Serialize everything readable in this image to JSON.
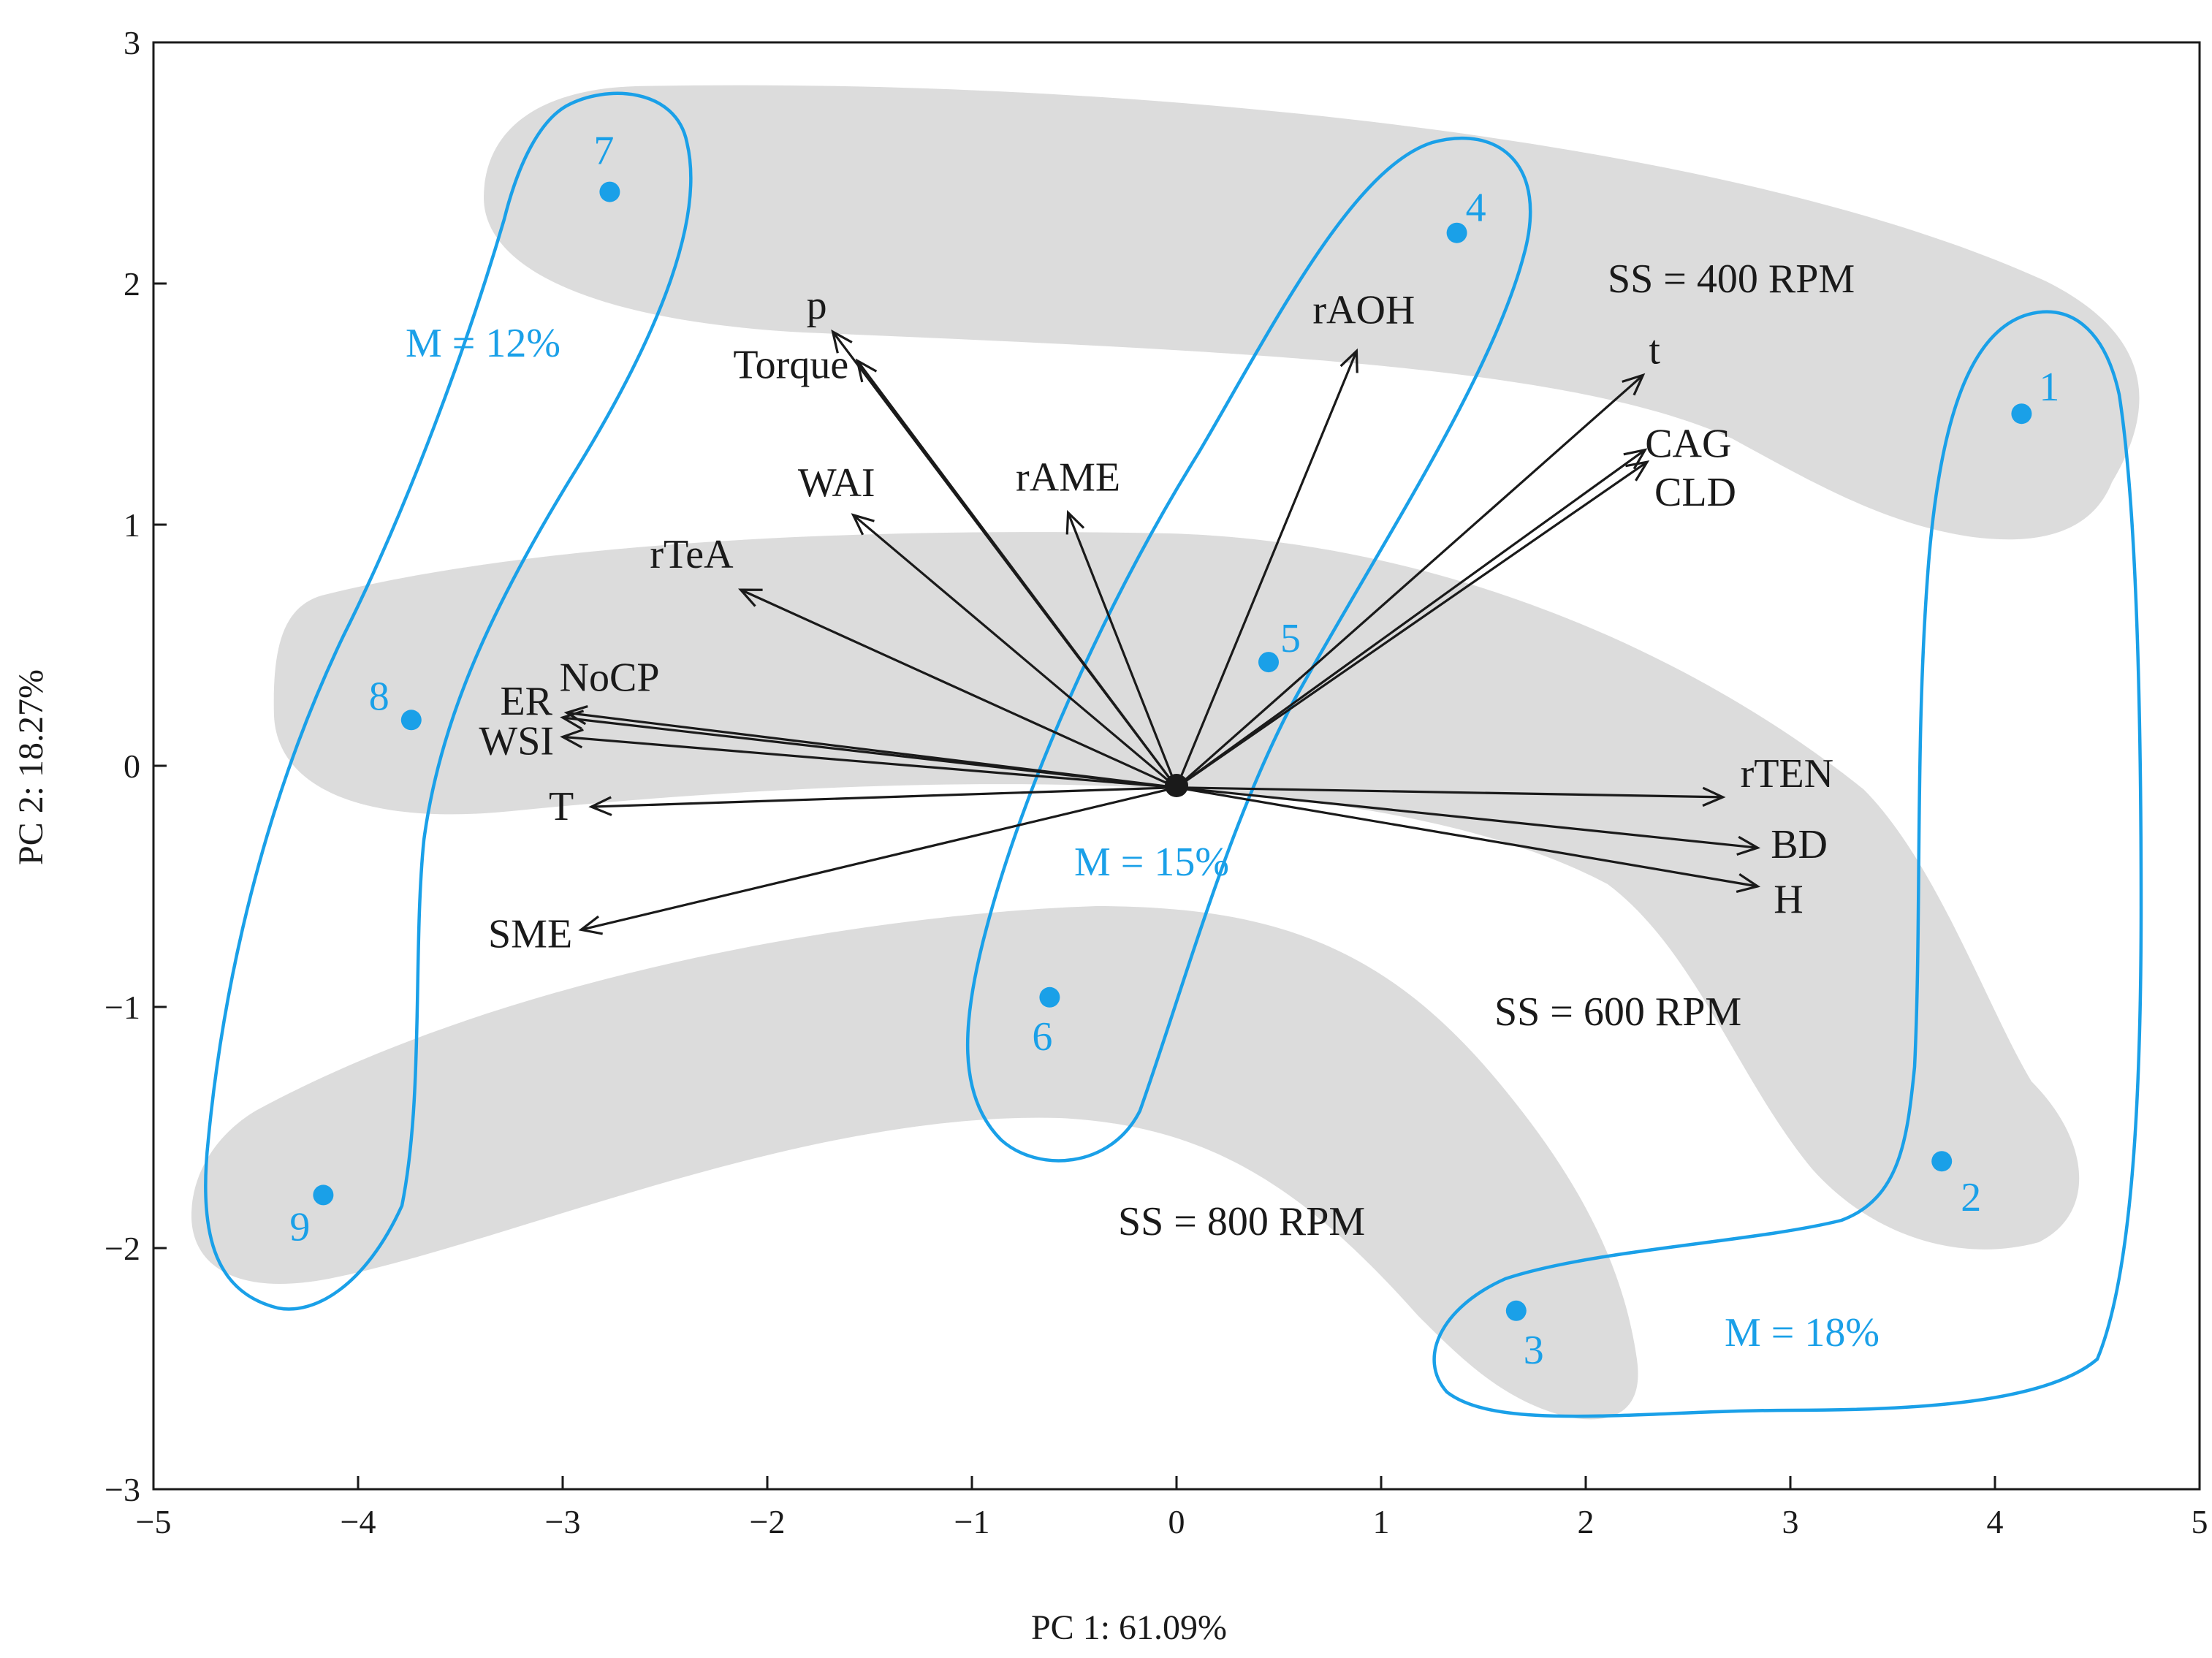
{
  "chart_data": {
    "type": "scatter",
    "subtype": "pca-biplot",
    "xlabel": "PC 1: 61.09%",
    "ylabel": "PC 2: 18.27%",
    "xlim": [
      -5,
      5
    ],
    "ylim": [
      -3,
      3
    ],
    "xticks": [
      -5,
      -4,
      -3,
      -2,
      -1,
      0,
      1,
      2,
      3,
      4,
      5
    ],
    "yticks": [
      3,
      2,
      1,
      0,
      -1,
      -2,
      -3
    ],
    "xtick_labels": [
      "−5",
      "−4",
      "−3",
      "−2",
      "−1",
      "0",
      "1",
      "2",
      "3",
      "4",
      "5"
    ],
    "ytick_labels": [
      "3",
      "2",
      "1",
      "0",
      "−1",
      "−2",
      "−3"
    ],
    "point_color": "#1aa0e8",
    "loop_color": "#1aa0e8",
    "band_color": "#dcdcdc",
    "points": [
      {
        "label": "1",
        "x": 4.13,
        "y": 1.46
      },
      {
        "label": "2",
        "x": 3.74,
        "y": -1.64
      },
      {
        "label": "3",
        "x": 1.66,
        "y": -2.26
      },
      {
        "label": "4",
        "x": 1.37,
        "y": 2.21
      },
      {
        "label": "5",
        "x": 0.45,
        "y": 0.43
      },
      {
        "label": "6",
        "x": -0.62,
        "y": -0.96
      },
      {
        "label": "7",
        "x": -2.77,
        "y": 2.38
      },
      {
        "label": "8",
        "x": -3.74,
        "y": 0.19
      },
      {
        "label": "9",
        "x": -4.17,
        "y": -1.78
      }
    ],
    "loadings": [
      {
        "label": "p",
        "x": -1.68,
        "y": 1.8
      },
      {
        "label": "Torque",
        "x": -1.56,
        "y": 1.68
      },
      {
        "label": "WAI",
        "x": -1.58,
        "y": 1.04
      },
      {
        "label": "rAME",
        "x": -0.53,
        "y": 1.05
      },
      {
        "label": "rTeA",
        "x": -2.13,
        "y": 0.73
      },
      {
        "label": "rAOH",
        "x": 0.88,
        "y": 1.72
      },
      {
        "label": "t",
        "x": 2.28,
        "y": 1.62
      },
      {
        "label": "CAG",
        "x": 2.29,
        "y": 1.31
      },
      {
        "label": "CLD",
        "x": 2.3,
        "y": 1.26
      },
      {
        "label": "NoCP",
        "x": -2.98,
        "y": 0.22
      },
      {
        "label": "ER",
        "x": -3.0,
        "y": 0.2
      },
      {
        "label": "WSI",
        "x": -3.0,
        "y": 0.12
      },
      {
        "label": "T",
        "x": -2.86,
        "y": -0.17
      },
      {
        "label": "SME",
        "x": -2.91,
        "y": -0.68
      },
      {
        "label": "rTEN",
        "x": 2.67,
        "y": -0.13
      },
      {
        "label": "BD",
        "x": 2.84,
        "y": -0.34
      },
      {
        "label": "H",
        "x": 2.84,
        "y": -0.5
      }
    ],
    "groups": [
      {
        "label": "M = 12%",
        "members": [
          "7",
          "8",
          "9"
        ]
      },
      {
        "label": "M = 15%",
        "members": [
          "4",
          "5",
          "6"
        ]
      },
      {
        "label": "M = 18%",
        "members": [
          "1",
          "2",
          "3"
        ]
      }
    ],
    "bands": [
      {
        "label": "SS = 400 RPM",
        "members": [
          "7",
          "4",
          "1"
        ]
      },
      {
        "label": "SS = 600 RPM",
        "members": [
          "8",
          "5",
          "2"
        ]
      },
      {
        "label": "SS = 800 RPM",
        "members": [
          "9",
          "6",
          "3"
        ]
      }
    ]
  }
}
